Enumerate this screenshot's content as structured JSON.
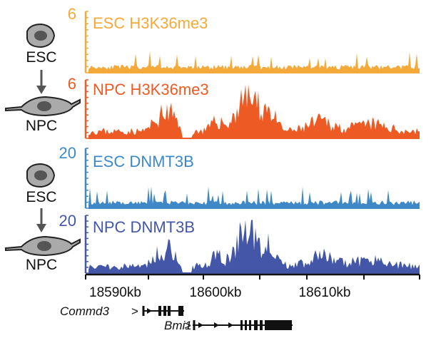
{
  "tracks": [
    {
      "id": "esc-h3k36me3",
      "label": "ESC H3K36me3",
      "max_label": "6",
      "color": "#F5A93A",
      "seed": 11,
      "profile": "low"
    },
    {
      "id": "npc-h3k36me3",
      "label": "NPC H3K36me3",
      "max_label": "6",
      "color": "#EE5A24",
      "seed": 23,
      "profile": "high"
    },
    {
      "id": "esc-dnmt3b",
      "label": "ESC DNMT3B",
      "max_label": "20",
      "color": "#3E88C8",
      "seed": 37,
      "profile": "low"
    },
    {
      "id": "npc-dnmt3b",
      "label": "NPC DNMT3B",
      "max_label": "20",
      "color": "#4356A8",
      "seed": 51,
      "profile": "high"
    }
  ],
  "cell_states": [
    {
      "top": "ESC",
      "bottom": "NPC"
    },
    {
      "top": "ESC",
      "bottom": "NPC"
    }
  ],
  "axis": {
    "ticks": [
      "18590kb",
      "18600kb",
      "18610kb"
    ]
  },
  "genes": [
    {
      "name": "Commd3",
      "strand_glyph": ">"
    },
    {
      "name": "Bmi1",
      "strand_glyph": ">"
    }
  ]
}
